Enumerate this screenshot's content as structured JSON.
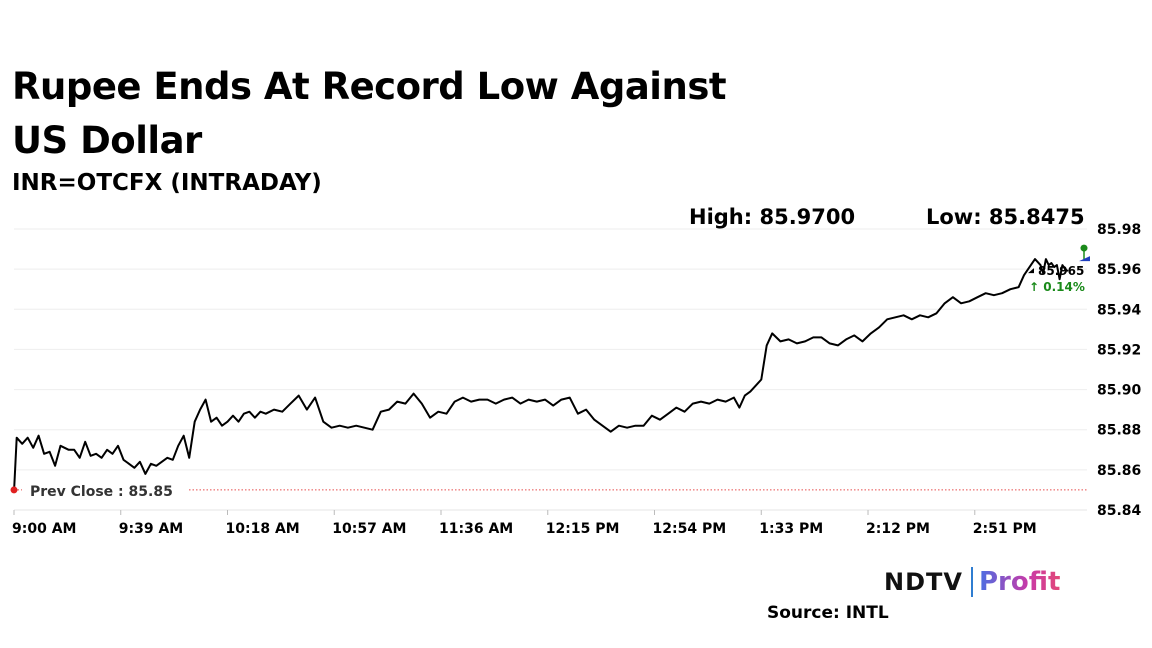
{
  "header": {
    "title": "Rupee Ends At Record Low Against US Dollar",
    "subtitle": "INR=OTCFX (INTRADAY)",
    "high": "High: 85.9700",
    "low": "Low: 85.8475"
  },
  "footer": {
    "brand_ndtv": "NDTV",
    "brand_profit": "Profit",
    "source": "Source: INTL"
  },
  "colors": {
    "line": "#000000",
    "prev_close": "#e02020",
    "positive": "#1a8a1a",
    "grid": "#eeeeee"
  },
  "chart_data": {
    "type": "line",
    "title": "Rupee Ends At Record Low Against US Dollar",
    "subtitle": "INR=OTCFX (INTRADAY)",
    "xlabel": "",
    "ylabel": "",
    "x_ticks": [
      "9:00 AM",
      "9:39 AM",
      "10:18 AM",
      "10:57 AM",
      "11:36 AM",
      "12:15 PM",
      "12:54 PM",
      "1:33 PM",
      "2:12 PM",
      "2:51 PM"
    ],
    "y_ticks": [
      "85.84",
      "85.86",
      "85.88",
      "85.90",
      "85.92",
      "85.94",
      "85.96",
      "85.98"
    ],
    "ylim": [
      85.84,
      85.98
    ],
    "x_range_minutes": [
      0,
      392
    ],
    "prev_close": 85.85,
    "prev_close_label": "Prev Close : 85.85",
    "last_value_label": "85.965",
    "change_label": "↑ 0.14%",
    "series": [
      {
        "name": "INR=OTCFX",
        "x_minutes": [
          0,
          1,
          3,
          5,
          7,
          9,
          11,
          13,
          15,
          17,
          20,
          22,
          24,
          26,
          28,
          30,
          32,
          34,
          36,
          38,
          40,
          42,
          44,
          46,
          48,
          50,
          52,
          54,
          56,
          58,
          60,
          62,
          64,
          66,
          68,
          70,
          72,
          74,
          76,
          78,
          80,
          82,
          84,
          86,
          88,
          90,
          92,
          95,
          98,
          101,
          104,
          107,
          110,
          113,
          116,
          119,
          122,
          125,
          128,
          131,
          134,
          137,
          140,
          143,
          146,
          149,
          152,
          155,
          158,
          161,
          164,
          167,
          170,
          173,
          176,
          179,
          182,
          185,
          188,
          191,
          194,
          197,
          200,
          203,
          206,
          209,
          212,
          215,
          218,
          221,
          224,
          227,
          230,
          233,
          236,
          239,
          242,
          245,
          248,
          251,
          254,
          257,
          260,
          263,
          265,
          267,
          269,
          271,
          273,
          275,
          277,
          280,
          283,
          286,
          289,
          292,
          295,
          298,
          301,
          304,
          307,
          310,
          313,
          316,
          319,
          322,
          325,
          328,
          331,
          334,
          337,
          340,
          343,
          346,
          349,
          352,
          355,
          358,
          361,
          364,
          367,
          369,
          371,
          373,
          375,
          376,
          377,
          378,
          379,
          380,
          381,
          382,
          383,
          384,
          385
        ],
        "values": [
          85.849,
          85.876,
          85.873,
          85.876,
          85.871,
          85.877,
          85.868,
          85.869,
          85.862,
          85.872,
          85.87,
          85.87,
          85.866,
          85.874,
          85.867,
          85.868,
          85.866,
          85.87,
          85.868,
          85.872,
          85.865,
          85.863,
          85.861,
          85.864,
          85.858,
          85.863,
          85.862,
          85.864,
          85.866,
          85.865,
          85.872,
          85.877,
          85.866,
          85.884,
          85.89,
          85.895,
          85.884,
          85.886,
          85.882,
          85.884,
          85.887,
          85.884,
          85.888,
          85.889,
          85.886,
          85.889,
          85.888,
          85.89,
          85.889,
          85.893,
          85.897,
          85.89,
          85.896,
          85.884,
          85.881,
          85.882,
          85.881,
          85.882,
          85.881,
          85.88,
          85.889,
          85.89,
          85.894,
          85.893,
          85.898,
          85.893,
          85.886,
          85.889,
          85.888,
          85.894,
          85.896,
          85.894,
          85.895,
          85.895,
          85.893,
          85.895,
          85.896,
          85.893,
          85.895,
          85.894,
          85.895,
          85.892,
          85.895,
          85.896,
          85.888,
          85.89,
          85.885,
          85.882,
          85.879,
          85.882,
          85.881,
          85.882,
          85.882,
          85.887,
          85.885,
          85.888,
          85.891,
          85.889,
          85.893,
          85.894,
          85.893,
          85.895,
          85.894,
          85.896,
          85.891,
          85.897,
          85.899,
          85.902,
          85.905,
          85.922,
          85.928,
          85.924,
          85.925,
          85.923,
          85.924,
          85.926,
          85.926,
          85.923,
          85.922,
          85.925,
          85.927,
          85.924,
          85.928,
          85.931,
          85.935,
          85.936,
          85.937,
          85.935,
          85.937,
          85.936,
          85.938,
          85.943,
          85.946,
          85.943,
          85.944,
          85.946,
          85.948,
          85.947,
          85.948,
          85.95,
          85.951,
          85.957,
          85.961,
          85.965,
          85.962,
          85.958,
          85.965,
          85.962,
          85.963,
          85.961,
          85.962,
          85.955,
          85.962,
          85.96,
          85.959
        ]
      }
    ]
  }
}
